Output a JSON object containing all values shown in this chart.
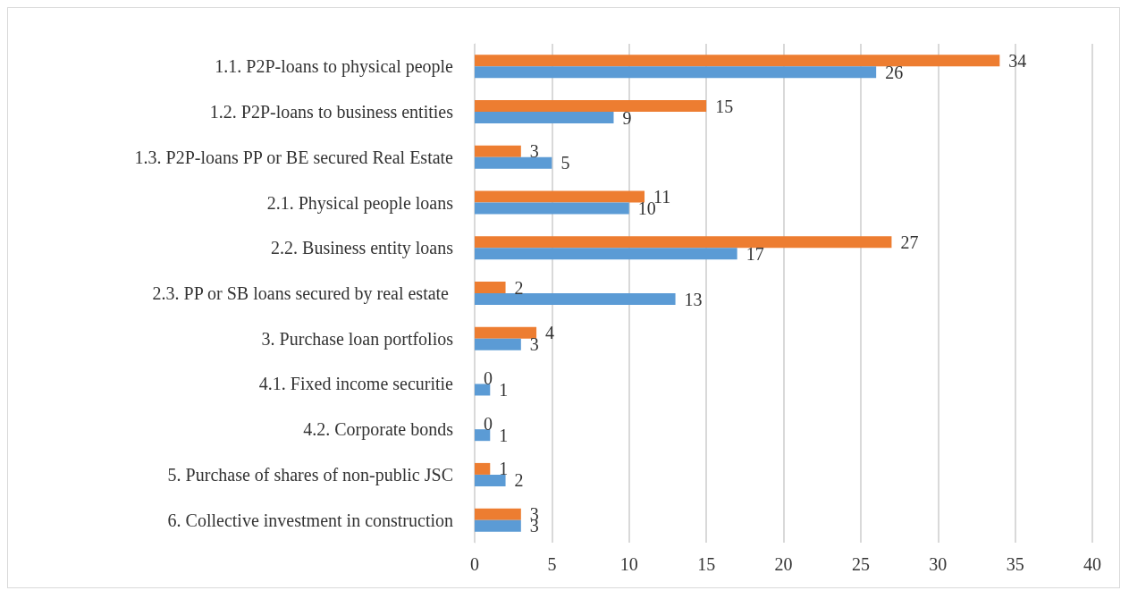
{
  "chart_data": {
    "type": "bar",
    "orientation": "horizontal",
    "categories": [
      "1.1. P2P-loans to physical people",
      "1.2. P2P-loans to business entities",
      "1.3. P2P-loans PP or BE secured Real Estate",
      "2.1. Physical people loans",
      "2.2. Business entity loans",
      "2.3. PP or SB loans secured by real estate ",
      "3. Purchase loan portfolios",
      "4.1. Fixed income securitie",
      "4.2. Corporate bonds",
      "5. Purchase of shares of non-public JSC",
      "6. Collective investment in construction"
    ],
    "series": [
      {
        "color": "#ed7d31",
        "values": [
          34,
          15,
          3,
          11,
          27,
          2,
          4,
          0,
          0,
          1,
          3
        ]
      },
      {
        "color": "#5b9bd5",
        "values": [
          26,
          9,
          5,
          10,
          17,
          13,
          3,
          1,
          1,
          2,
          3
        ]
      }
    ],
    "xlim": [
      0,
      40
    ],
    "xticks": [
      0,
      5,
      10,
      15,
      20,
      25,
      30,
      35,
      40
    ],
    "grid": "x",
    "data_labels": true
  }
}
